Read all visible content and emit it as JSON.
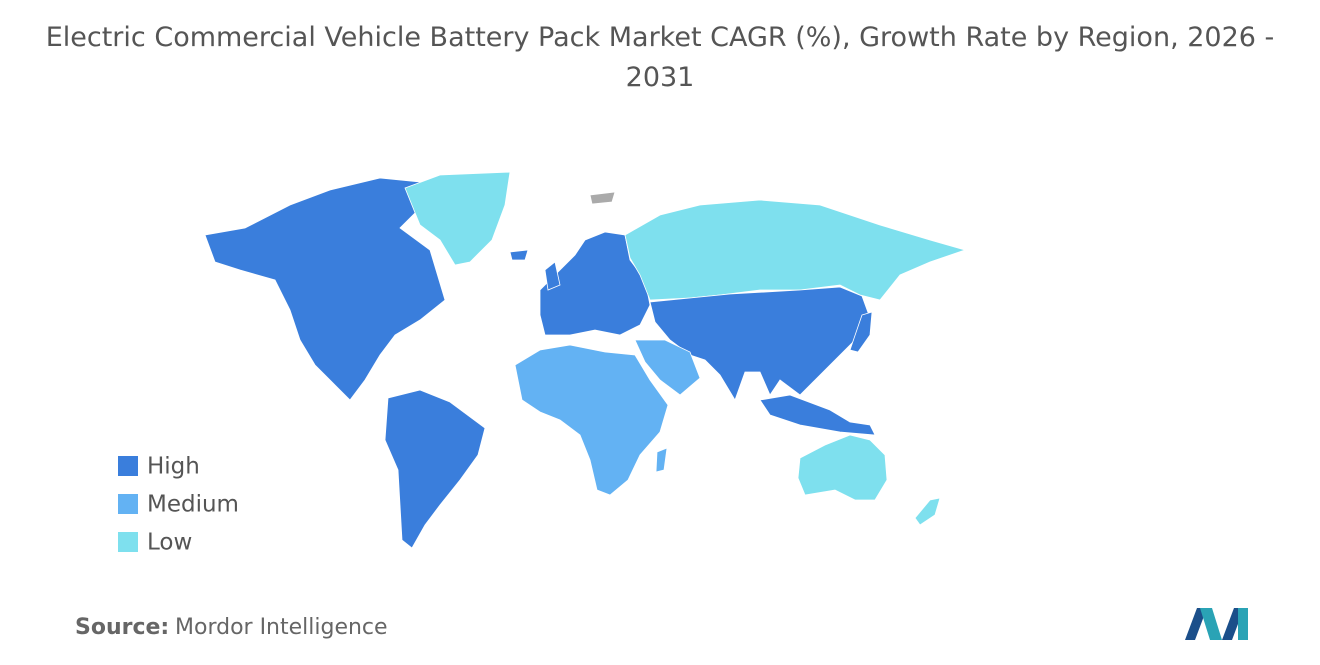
{
  "title": "Electric Commercial Vehicle Battery Pack Market CAGR (%), Growth Rate by Region, 2026 - 2031",
  "legend": [
    {
      "label": "High",
      "color": "#3a7edc"
    },
    {
      "label": "Medium",
      "color": "#63b2f3"
    },
    {
      "label": "Low",
      "color": "#7ee0ee"
    }
  ],
  "source": {
    "label": "Source:",
    "text": "Mordor Intelligence"
  }
}
